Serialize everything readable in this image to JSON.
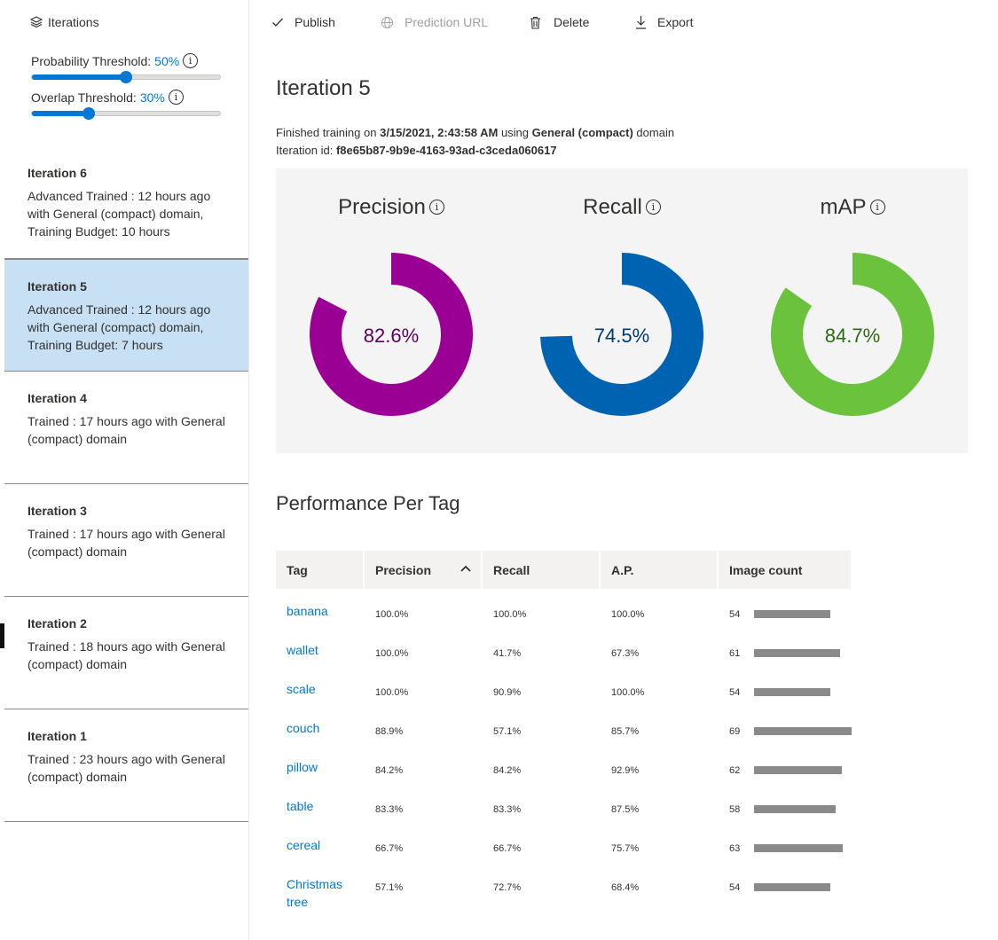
{
  "sidebar": {
    "header_label": "Iterations",
    "probability_threshold": {
      "label": "Probability Threshold:",
      "value_text": "50%",
      "value": 0.5
    },
    "overlap_threshold": {
      "label": "Overlap Threshold:",
      "value_text": "30%",
      "value": 0.3
    },
    "iterations": [
      {
        "name": "Iteration 6",
        "desc": "Advanced Trained : 12 hours ago with General (compact) domain, Training Budget: 10 hours"
      },
      {
        "name": "Iteration 5",
        "desc": "Advanced Trained : 12 hours ago with General (compact) domain, Training Budget: 7 hours",
        "selected": true
      },
      {
        "name": "Iteration 4",
        "desc": "Trained : 17 hours ago with General (compact) domain"
      },
      {
        "name": "Iteration 3",
        "desc": "Trained : 17 hours ago with General (compact) domain"
      },
      {
        "name": "Iteration 2",
        "desc": "Trained : 18 hours ago with General (compact) domain"
      },
      {
        "name": "Iteration 1",
        "desc": "Trained : 23 hours ago with General (compact) domain"
      }
    ]
  },
  "toolbar": {
    "publish_label": "Publish",
    "prediction_url_label": "Prediction URL",
    "delete_label": "Delete",
    "export_label": "Export"
  },
  "main": {
    "title": "Iteration 5",
    "finished_prefix": "Finished training on",
    "finished_date": "3/15/2021, 2:43:58 AM",
    "finished_middle": "using",
    "domain_name": "General (compact)",
    "domain_suffix": "domain",
    "iteration_id_label": "Iteration id:",
    "iteration_id": "f8e65b87-9b9e-4163-93ad-c3ceda060617"
  },
  "metrics": [
    {
      "title": "Precision",
      "value_text": "82.6%",
      "value": 0.826,
      "color": "#9b0095",
      "text_color": "#5c0058"
    },
    {
      "title": "Recall",
      "value_text": "74.5%",
      "value": 0.745,
      "color": "#0063b1",
      "text_color": "#003a6c"
    },
    {
      "title": "mAP",
      "value_text": "84.7%",
      "value": 0.847,
      "color": "#6bc23d",
      "text_color": "#2a6a12"
    }
  ],
  "performance": {
    "title": "Performance Per Tag",
    "columns": [
      "Tag",
      "Precision",
      "Recall",
      "A.P.",
      "Image count"
    ],
    "rows": [
      {
        "tag": "banana",
        "precision": "100.0%",
        "recall": "100.0%",
        "ap": "100.0%",
        "count": 54
      },
      {
        "tag": "wallet",
        "precision": "100.0%",
        "recall": "41.7%",
        "ap": "67.3%",
        "count": 61
      },
      {
        "tag": "scale",
        "precision": "100.0%",
        "recall": "90.9%",
        "ap": "100.0%",
        "count": 54
      },
      {
        "tag": "couch",
        "precision": "88.9%",
        "recall": "57.1%",
        "ap": "85.7%",
        "count": 69
      },
      {
        "tag": "pillow",
        "precision": "84.2%",
        "recall": "84.2%",
        "ap": "92.9%",
        "count": 62
      },
      {
        "tag": "table",
        "precision": "83.3%",
        "recall": "83.3%",
        "ap": "87.5%",
        "count": 58
      },
      {
        "tag": "cereal",
        "precision": "66.7%",
        "recall": "66.7%",
        "ap": "75.7%",
        "count": 63
      },
      {
        "tag": "Christmas tree",
        "precision": "57.1%",
        "recall": "72.7%",
        "ap": "68.4%",
        "count": 54
      }
    ]
  }
}
